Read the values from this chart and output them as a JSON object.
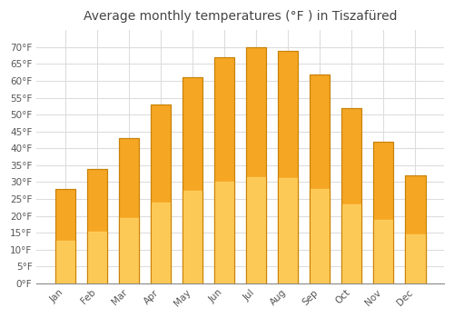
{
  "title": "Average monthly temperatures (°F ) in Tiszafüred",
  "months": [
    "Jan",
    "Feb",
    "Mar",
    "Apr",
    "May",
    "Jun",
    "Jul",
    "Aug",
    "Sep",
    "Oct",
    "Nov",
    "Dec"
  ],
  "values": [
    28,
    34,
    43,
    53,
    61,
    67,
    70,
    69,
    62,
    52,
    42,
    32
  ],
  "bar_color_top": "#F5A623",
  "bar_color_bottom": "#FFD060",
  "bar_edge_color": "#C8820A",
  "background_color": "#FFFFFF",
  "plot_bg_color": "#FFFFFF",
  "grid_color": "#DDDDDD",
  "ylim": [
    0,
    75
  ],
  "yticks": [
    0,
    5,
    10,
    15,
    20,
    25,
    30,
    35,
    40,
    45,
    50,
    55,
    60,
    65,
    70
  ],
  "ytick_labels": [
    "0°F",
    "5°F",
    "10°F",
    "15°F",
    "20°F",
    "25°F",
    "30°F",
    "35°F",
    "40°F",
    "45°F",
    "50°F",
    "55°F",
    "60°F",
    "65°F",
    "70°F"
  ],
  "title_fontsize": 10,
  "tick_fontsize": 7.5,
  "tick_color": "#555555",
  "title_color": "#444444"
}
